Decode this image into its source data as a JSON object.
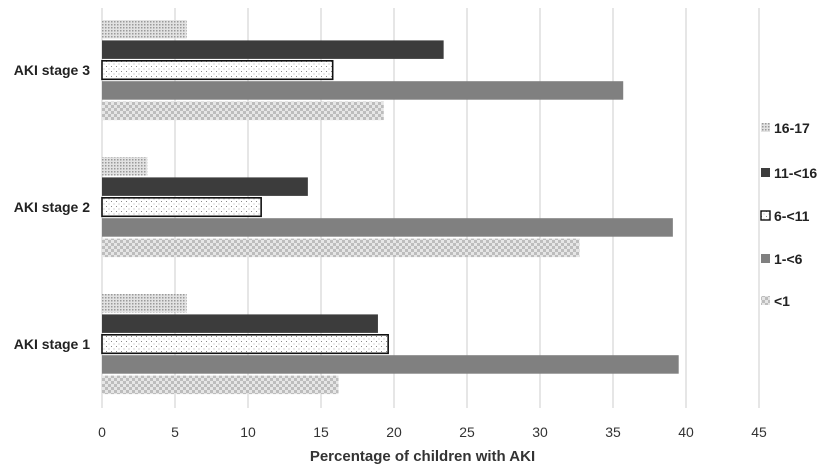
{
  "chart_data": {
    "type": "bar",
    "orientation": "horizontal",
    "title": "",
    "xlabel": "Percentage of children with AKI",
    "ylabel": "",
    "xlim": [
      0,
      45
    ],
    "x_ticks": [
      0,
      5,
      10,
      15,
      20,
      25,
      30,
      35,
      40,
      45
    ],
    "grid": true,
    "legend_position": "right",
    "categories": [
      "AKI stage 3",
      "AKI stage 2",
      "AKI stage 1"
    ],
    "series": [
      {
        "name": "16-17",
        "values": [
          5.8,
          3.1,
          5.8
        ],
        "color": "#c8c8c8",
        "pattern": "dots-dense"
      },
      {
        "name": "11-<16",
        "values": [
          23.4,
          14.1,
          18.9
        ],
        "color": "#3c3c3c",
        "pattern": "solid"
      },
      {
        "name": "6-<11",
        "values": [
          15.8,
          10.9,
          19.6
        ],
        "color": "#ffffff",
        "pattern": "dots-sparse"
      },
      {
        "name": "1-<6",
        "values": [
          35.7,
          39.1,
          39.5
        ],
        "color": "#808080",
        "pattern": "solid"
      },
      {
        "name": "<1",
        "values": [
          19.3,
          32.7,
          16.2
        ],
        "color": "#cfcfcf",
        "pattern": "checker"
      }
    ]
  }
}
